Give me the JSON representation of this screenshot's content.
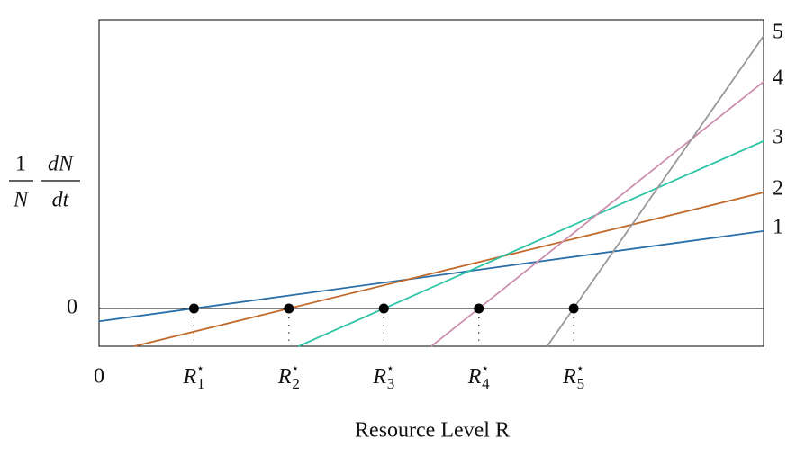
{
  "chart_data": {
    "type": "line",
    "xlabel": "Resource Level R",
    "ylabel": {
      "left": {
        "num": "1",
        "den": "N"
      },
      "right": {
        "num": "dN",
        "den": "dt"
      }
    },
    "xlim": [
      0,
      7
    ],
    "ylim": [
      -1,
      7.64
    ],
    "xticks": [
      0,
      {
        "value": 1,
        "label": "R⋆1"
      },
      {
        "value": 2,
        "label": "R⋆2"
      },
      {
        "value": 3,
        "label": "R⋆3"
      },
      {
        "value": 4,
        "label": "R⋆4"
      },
      {
        "value": 5,
        "label": "R⋆5"
      }
    ],
    "yticks": [
      0
    ],
    "series": [
      {
        "name": "1",
        "color": "#2a6fa8",
        "x": [
          0,
          7
        ],
        "values": [
          -0.34,
          2.05
        ]
      },
      {
        "name": "2",
        "color": "#c0692a",
        "x": [
          0.37,
          7
        ],
        "values": [
          -1,
          3.07
        ]
      },
      {
        "name": "3",
        "color": "#2ec4a6",
        "x": [
          2.1,
          7
        ],
        "values": [
          -1,
          4.43
        ]
      },
      {
        "name": "4",
        "color": "#cc8fb0",
        "x": [
          3.5,
          7
        ],
        "values": [
          -1,
          6.0
        ]
      },
      {
        "name": "5",
        "color": "#999999",
        "x": [
          4.72,
          7
        ],
        "values": [
          -1,
          7.21
        ]
      }
    ],
    "equilibria": {
      "x": [
        1,
        2,
        3,
        4,
        5
      ],
      "values": [
        0,
        0,
        0,
        0,
        0
      ],
      "color": "#000000"
    }
  }
}
